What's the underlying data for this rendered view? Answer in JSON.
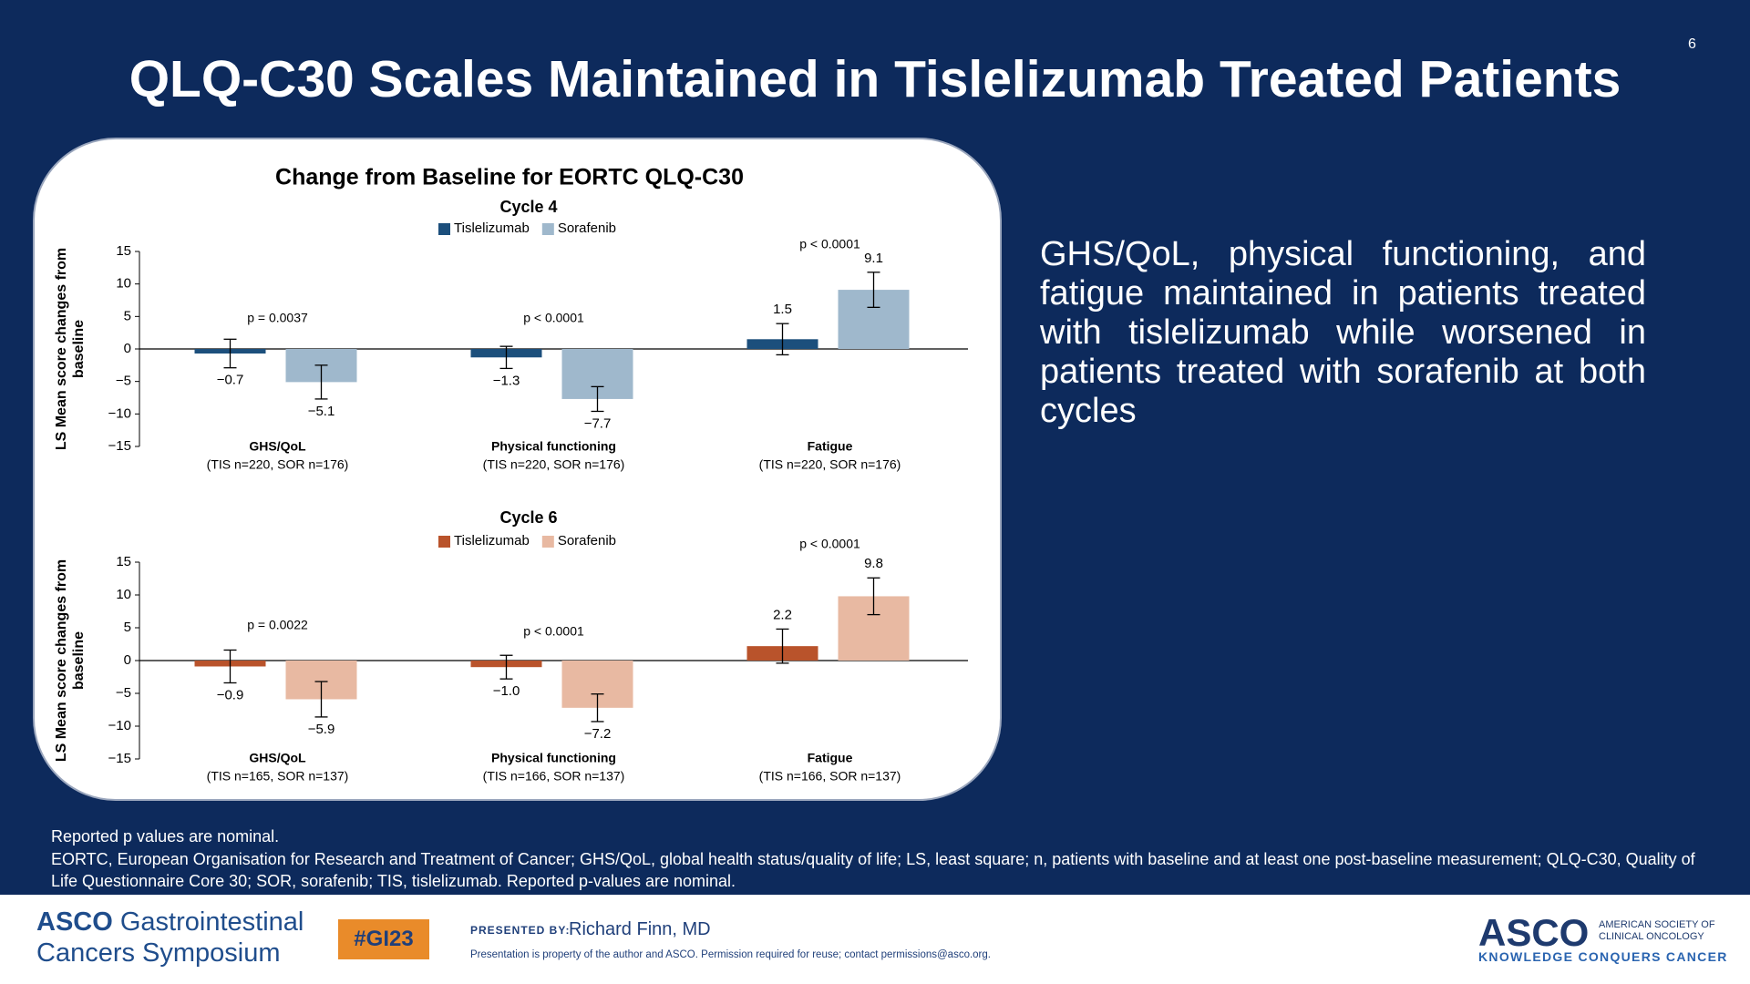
{
  "slide": {
    "title": "QLQ-C30 Scales Maintained in Tislelizumab Treated Patients",
    "page_number": "6"
  },
  "panel_title": "Change from Baseline for EORTC QLQ-C30",
  "chart_data": [
    {
      "type": "bar",
      "title": "Cycle 4",
      "y_label": "LS Mean score changes from baseline",
      "categories": [
        "GHS/QoL",
        "Physical functioning",
        "Fatigue"
      ],
      "category_notes": [
        "(TIS n=220, SOR n=176)",
        "(TIS n=220, SOR n=176)",
        "(TIS n=220, SOR n=176)"
      ],
      "p_values": [
        "p = 0.0037",
        "p < 0.0001",
        "p < 0.0001"
      ],
      "series": [
        {
          "name": "Tislelizumab",
          "color": "#1c4f7c",
          "values": [
            -0.7,
            -1.3,
            1.5
          ],
          "value_labels": [
            "−0.7",
            "−1.3",
            "1.5"
          ],
          "errors": [
            2.2,
            1.7,
            2.4
          ]
        },
        {
          "name": "Sorafenib",
          "color": "#9fb8cc",
          "values": [
            -5.1,
            -7.7,
            9.1
          ],
          "value_labels": [
            "−5.1",
            "−7.7",
            "9.1"
          ],
          "errors": [
            2.6,
            1.9,
            2.7
          ]
        }
      ],
      "ylim": [
        -15,
        15
      ],
      "yticks": [
        {
          "value": -15,
          "label": "−15"
        },
        {
          "value": -10,
          "label": "−10"
        },
        {
          "value": -5,
          "label": "−5"
        },
        0,
        5,
        10,
        15
      ]
    },
    {
      "type": "bar",
      "title": "Cycle 6",
      "y_label": "LS Mean score changes from baseline",
      "categories": [
        "GHS/QoL",
        "Physical functioning",
        "Fatigue"
      ],
      "category_notes": [
        "(TIS n=165, SOR n=137)",
        "(TIS n=166, SOR n=137)",
        "(TIS n=166, SOR n=137)"
      ],
      "p_values": [
        "p = 0.0022",
        "p < 0.0001",
        "p < 0.0001"
      ],
      "series": [
        {
          "name": "Tislelizumab",
          "color": "#b9532b",
          "values": [
            -0.9,
            -1.0,
            2.2
          ],
          "value_labels": [
            "−0.9",
            "−1.0",
            "2.2"
          ],
          "errors": [
            2.5,
            1.8,
            2.6
          ]
        },
        {
          "name": "Sorafenib",
          "color": "#e8b9a2",
          "values": [
            -5.9,
            -7.2,
            9.8
          ],
          "value_labels": [
            "−5.9",
            "−7.2",
            "9.8"
          ],
          "errors": [
            2.7,
            2.1,
            2.8
          ]
        }
      ],
      "ylim": [
        -15,
        15
      ],
      "yticks": [
        {
          "value": -15,
          "label": "−15"
        },
        {
          "value": -10,
          "label": "−10"
        },
        {
          "value": -5,
          "label": "−5"
        },
        0,
        5,
        10,
        15
      ]
    }
  ],
  "summary": "GHS/QoL, physical functioning, and fatigue maintained in patients treated with tislelizumab while worsened in patients treated with sorafenib at both cycles",
  "footnotes": [
    "Reported p values are nominal.",
    "EORTC, European Organisation for Research and Treatment of Cancer; GHS/QoL, global health status/quality of life; LS, least square; n, patients with baseline and at least one post-baseline measurement; QLQ-C30, Quality of Life Questionnaire Core 30; SOR, sorafenib; TIS, tislelizumab.  Reported p-values are nominal."
  ],
  "footer": {
    "logo_left": [
      "ASCO",
      "Gastrointestinal",
      "Cancers Symposium"
    ],
    "hashtag": "#GI23",
    "presented_by_label": "PRESENTED BY:",
    "presenter": "Richard Finn, MD",
    "notice": "Presentation is property of the author and ASCO. Permission required for reuse; contact permissions@asco.org.",
    "logo_right": {
      "name": "ASCO",
      "org": [
        "AMERICAN SOCIETY OF",
        "CLINICAL ONCOLOGY"
      ],
      "tagline": "KNOWLEDGE CONQUERS CANCER"
    }
  }
}
